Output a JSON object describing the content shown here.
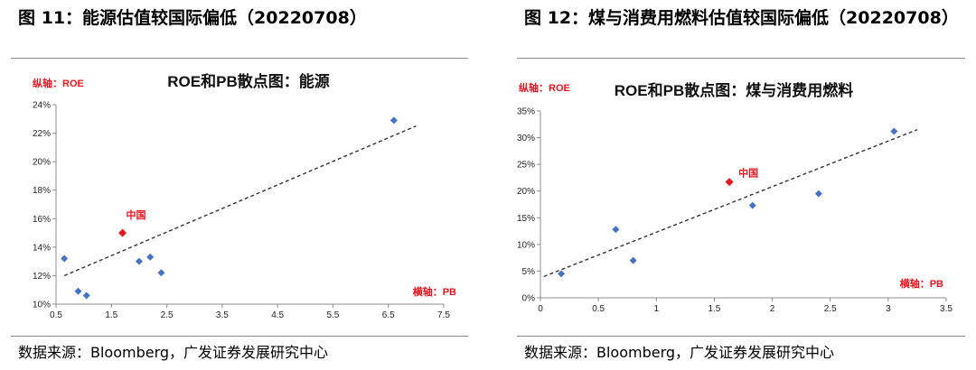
{
  "left": {
    "figure_title": "图 11：能源估值较国际偏低（20220708）",
    "source": "数据来源：Bloomberg，广发证券发展研究中心",
    "chart_data": {
      "type": "scatter",
      "title": "ROE和PB散点图：能源",
      "ylabel": "纵轴：ROE",
      "xlabel": "横轴：PB",
      "xlim": [
        0.5,
        7.5
      ],
      "ylim": [
        0.1,
        0.24
      ],
      "xticks": [
        0.5,
        1.5,
        2.5,
        3.5,
        4.5,
        5.5,
        6.5,
        7.5
      ],
      "xtick_labels": [
        "0.5",
        "1.5",
        "2.5",
        "3.5",
        "4.5",
        "5.5",
        "6.5",
        "7.5"
      ],
      "yticks": [
        0.1,
        0.12,
        0.14,
        0.16,
        0.18,
        0.2,
        0.22,
        0.24
      ],
      "ytick_labels": [
        "10%",
        "12%",
        "14%",
        "16%",
        "18%",
        "20%",
        "22%",
        "24%"
      ],
      "point_color": "#4472c4",
      "highlight_color": "#e8141e",
      "points": [
        {
          "x": 0.65,
          "y": 0.132
        },
        {
          "x": 0.9,
          "y": 0.109
        },
        {
          "x": 1.05,
          "y": 0.106
        },
        {
          "x": 2.0,
          "y": 0.13
        },
        {
          "x": 2.2,
          "y": 0.133
        },
        {
          "x": 2.4,
          "y": 0.122
        },
        {
          "x": 6.6,
          "y": 0.229
        }
      ],
      "highlight": {
        "label": "中国",
        "x": 1.7,
        "y": 0.15
      },
      "trendline": {
        "x0": 0.65,
        "y0": 0.12,
        "x1": 7.0,
        "y1": 0.225
      }
    }
  },
  "right": {
    "figure_title": "图 12：煤与消费用燃料估值较国际偏低（20220708）",
    "source": "数据来源：Bloomberg，广发证券发展研究中心",
    "chart_data": {
      "type": "scatter",
      "title": "ROE和PB散点图：煤与消费用燃料",
      "ylabel": "纵轴：ROE",
      "xlabel": "横轴：PB",
      "xlim": [
        0,
        3.5
      ],
      "ylim": [
        0,
        0.35
      ],
      "xticks": [
        0,
        0.5,
        1,
        1.5,
        2,
        2.5,
        3,
        3.5
      ],
      "xtick_labels": [
        "0",
        "0.5",
        "1",
        "1.5",
        "2",
        "2.5",
        "3",
        "3.5"
      ],
      "yticks": [
        0,
        0.05,
        0.1,
        0.15,
        0.2,
        0.25,
        0.3,
        0.35
      ],
      "ytick_labels": [
        "0%",
        "5%",
        "10%",
        "15%",
        "20%",
        "25%",
        "30%",
        "35%"
      ],
      "point_color": "#4472c4",
      "highlight_color": "#e8141e",
      "points": [
        {
          "x": 0.18,
          "y": 0.045
        },
        {
          "x": 0.65,
          "y": 0.128
        },
        {
          "x": 0.8,
          "y": 0.07
        },
        {
          "x": 1.83,
          "y": 0.173
        },
        {
          "x": 2.4,
          "y": 0.195
        },
        {
          "x": 3.05,
          "y": 0.312
        }
      ],
      "highlight": {
        "label": "中国",
        "x": 1.63,
        "y": 0.217
      },
      "trendline": {
        "x0": 0.03,
        "y0": 0.04,
        "x1": 3.25,
        "y1": 0.315
      }
    }
  }
}
